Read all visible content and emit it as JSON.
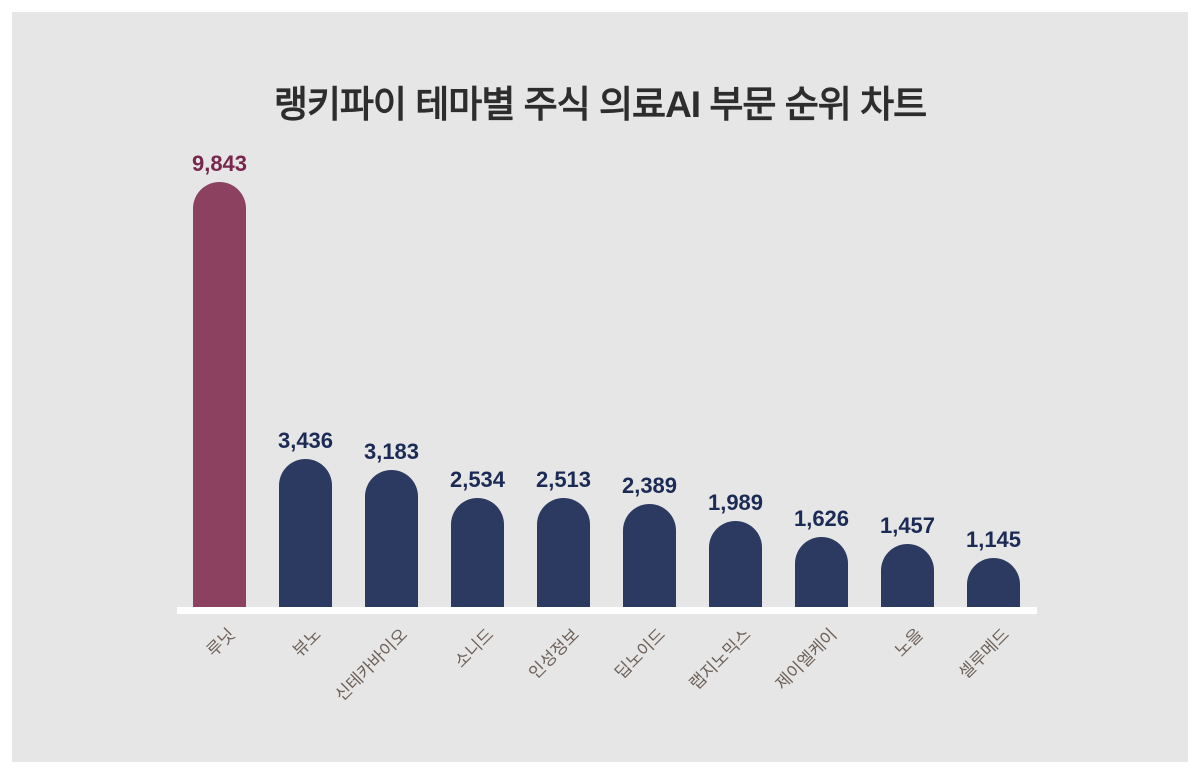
{
  "chart_data": {
    "type": "bar",
    "title": "랭키파이 테마별 주식 의료AI 부문 순위 차트",
    "categories": [
      "루닛",
      "뷰노",
      "신테카바이오",
      "소니드",
      "인성정보",
      "딥노이드",
      "랩지노믹스",
      "제이엘케이",
      "노을",
      "셀루메드"
    ],
    "values": [
      9843,
      3436,
      3183,
      2534,
      2513,
      2389,
      1989,
      1626,
      1457,
      1145
    ],
    "value_labels": [
      "9,843",
      "3,436",
      "3,183",
      "2,534",
      "2,513",
      "2,389",
      "1,989",
      "1,626",
      "1,457",
      "1,145"
    ],
    "highlight_index": 0,
    "xlabel": "",
    "ylabel": "",
    "ylim": [
      0,
      9843
    ],
    "grid": false,
    "legend": "none",
    "bar_style": "rounded-top",
    "colors": {
      "highlight_bar": "#8c4161",
      "default_bar": "#2c3a62",
      "highlight_value_text": "#77274d",
      "default_value_text": "#1c2b55",
      "tick_label": "#6e6159",
      "axis_line": "#ffffff",
      "title_text": "#2d2d2d",
      "panel_background": "#e6e6e6",
      "page_border": "#ffffff"
    }
  }
}
